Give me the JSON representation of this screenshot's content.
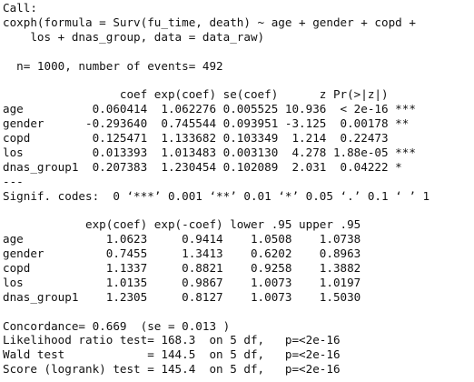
{
  "blocks": [
    [
      "Call:",
      "coxph(formula = Surv(fu_time, death) ~ age + gender + copd + ",
      "    los + dnas_group, data = data_raw)"
    ],
    [
      "  n= 1000, number of events= 492 "
    ],
    [
      "                 coef exp(coef) se(coef)      z Pr(>|z|)    ",
      "age          0.060414  1.062276 0.005525 10.936  < 2e-16 ***",
      "gender      -0.293640  0.745544 0.093951 -3.125  0.00178 ** ",
      "copd         0.125471  1.133682 0.103349  1.214  0.22473    ",
      "los          0.013393  1.013483 0.003130  4.278 1.88e-05 ***",
      "dnas_group1  0.207383  1.230454 0.102089  2.031  0.04222 *  ",
      "---",
      "Signif. codes:  0 ‘***’ 0.001 ‘**’ 0.01 ‘*’ 0.05 ‘.’ 0.1 ‘ ’ 1"
    ],
    [
      "            exp(coef) exp(-coef) lower .95 upper .95",
      "age            1.0623     0.9414    1.0508    1.0738",
      "gender         0.7455     1.3413    0.6202    0.8963",
      "copd           1.1337     0.8821    0.9258    1.3882",
      "los            1.0135     0.9867    1.0073    1.0197",
      "dnas_group1    1.2305     0.8127    1.0073    1.5030"
    ],
    [
      "Concordance= 0.669  (se = 0.013 )",
      "Likelihood ratio test= 168.3  on 5 df,   p=<2e-16",
      "Wald test            = 144.5  on 5 df,   p=<2e-16",
      "Score (logrank) test = 145.4  on 5 df,   p=<2e-16"
    ]
  ]
}
